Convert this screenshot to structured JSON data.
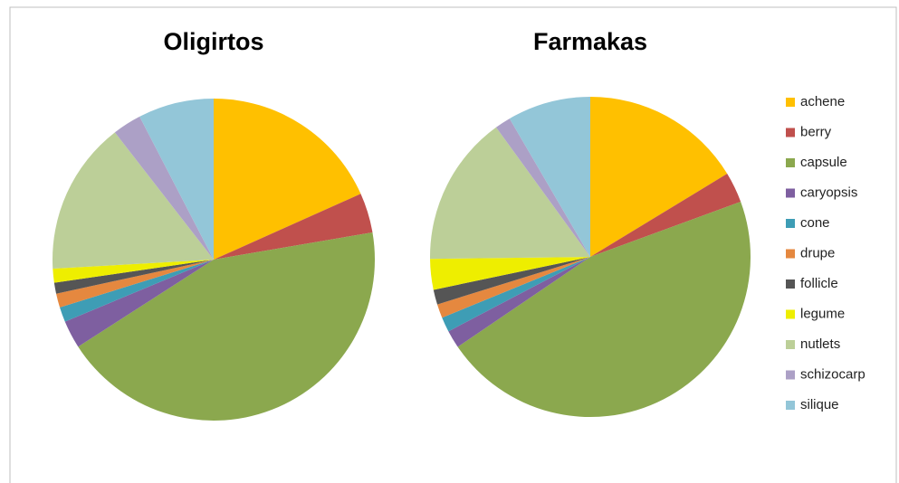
{
  "chart_data": [
    {
      "type": "pie",
      "title": "Oligirtos",
      "categories": [
        "achene",
        "berry",
        "capsule",
        "caryopsis",
        "cone",
        "drupe",
        "follicle",
        "legume",
        "nutlets",
        "schizocarp",
        "silique"
      ],
      "values": [
        18.3,
        4,
        43.6,
        2.8,
        1.5,
        1.4,
        1.1,
        1.4,
        15.4,
        2.9,
        7.6
      ],
      "colors": [
        "#FFC000",
        "#C0504D",
        "#8BA84E",
        "#7E5FA0",
        "#3E9DB5",
        "#E5883F",
        "#555555",
        "#EEEE00",
        "#BCCF98",
        "#ACA0C6",
        "#93C6D8"
      ]
    },
    {
      "type": "pie",
      "title": "Farmakas",
      "categories": [
        "achene",
        "berry",
        "capsule",
        "caryopsis",
        "cone",
        "drupe",
        "follicle",
        "legume",
        "nutlets",
        "schizocarp",
        "silique"
      ],
      "values": [
        16.3,
        3.1,
        46.1,
        1.8,
        1.5,
        1.4,
        1.5,
        3.1,
        15.2,
        1.6,
        8.4
      ],
      "colors": [
        "#FFC000",
        "#C0504D",
        "#8BA84E",
        "#7E5FA0",
        "#3E9DB5",
        "#E5883F",
        "#555555",
        "#EEEE00",
        "#BCCF98",
        "#ACA0C6",
        "#93C6D8"
      ]
    }
  ]
}
